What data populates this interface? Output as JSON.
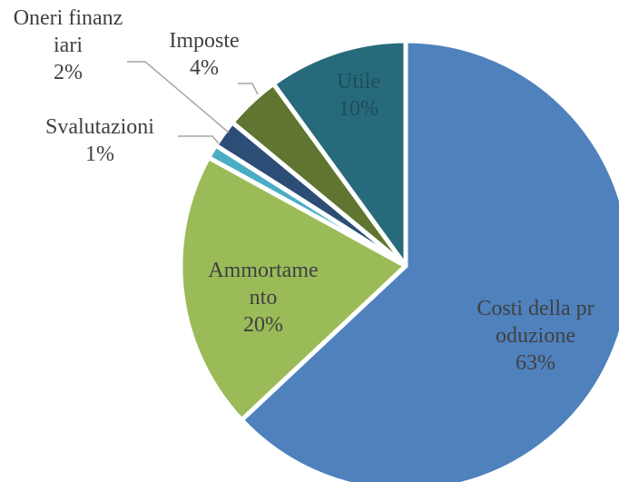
{
  "chart_data": {
    "type": "pie",
    "categories": [
      "Costi della produzione",
      "Ammortamento",
      "Svalutazioni",
      "Oneri finanziari",
      "Imposte",
      "Utile"
    ],
    "values": [
      63,
      20,
      1,
      2,
      4,
      10
    ],
    "value_labels": [
      "63%",
      "20%",
      "1%",
      "2%",
      "4%",
      "10%"
    ],
    "colors": [
      "#4f81bd",
      "#9bbb59",
      "#4bacc6",
      "#2c4d75",
      "#5f7530",
      "#276a7c"
    ]
  }
}
